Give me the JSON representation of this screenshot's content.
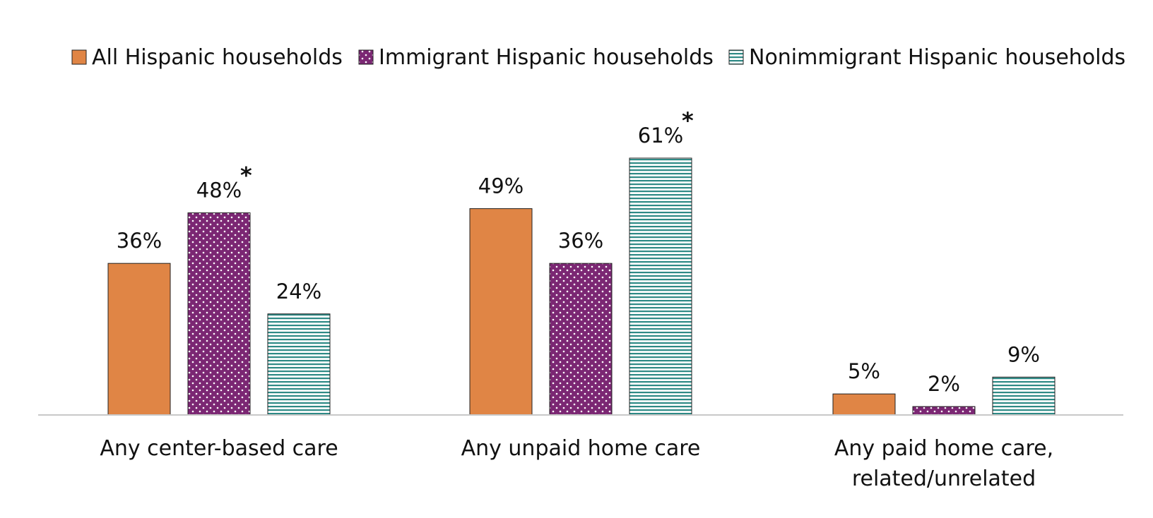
{
  "chart_data": {
    "type": "bar",
    "categories": [
      [
        "Any center-based care"
      ],
      [
        "Any unpaid home care"
      ],
      [
        "Any paid home care,",
        "related/unrelated"
      ]
    ],
    "series": [
      {
        "name": "All Hispanic households",
        "values": [
          36,
          49,
          5
        ],
        "labels": [
          "36%",
          "49%",
          "5%"
        ],
        "color": "#e08545",
        "pattern": "solid"
      },
      {
        "name": "Immigrant Hispanic households",
        "values": [
          48,
          36,
          2
        ],
        "labels": [
          "48%",
          "36%",
          "2%"
        ],
        "color": "#7b2773",
        "pattern": "dots"
      },
      {
        "name": "Nonimmigrant Hispanic households",
        "values": [
          24,
          61,
          9
        ],
        "labels": [
          "24%",
          "61%",
          "9%"
        ],
        "color": "#2e8a86",
        "pattern": "hlines"
      }
    ],
    "significance": [
      {
        "series": 1,
        "category": 0,
        "mark": "*"
      },
      {
        "series": 2,
        "category": 1,
        "mark": "*"
      }
    ],
    "ylim": [
      0,
      65
    ],
    "title": "",
    "xlabel": "",
    "ylabel": "",
    "grid": false,
    "legend_position": "top",
    "axis_color": "#c8c8c8"
  }
}
